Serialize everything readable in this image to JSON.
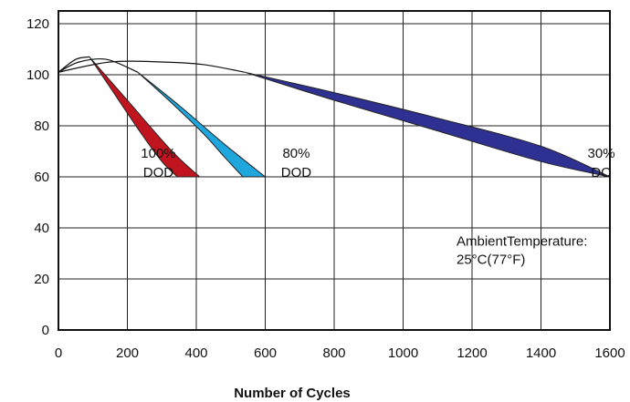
{
  "chart_data": {
    "type": "area",
    "xlabel": "Number of Cycles",
    "ylabel": "",
    "xlim": [
      0,
      1600
    ],
    "ylim": [
      0,
      125
    ],
    "grid": true,
    "x_ticks": [
      {
        "value": 0,
        "label": "0"
      },
      {
        "value": 200,
        "label": "200"
      },
      {
        "value": 400,
        "label": "400"
      },
      {
        "value": 600,
        "label": "600"
      },
      {
        "value": 800,
        "label": "800"
      },
      {
        "value": 1000,
        "label": "1000"
      },
      {
        "value": 1200,
        "label": "1200"
      },
      {
        "value": 1400,
        "label": "1400"
      },
      {
        "value": 1600,
        "label": "1600"
      }
    ],
    "y_ticks": [
      {
        "value": 0,
        "label": "0"
      },
      {
        "value": 20,
        "label": "20"
      },
      {
        "value": 40,
        "label": "40"
      },
      {
        "value": 60,
        "label": "60"
      },
      {
        "value": 80,
        "label": "80"
      },
      {
        "value": 100,
        "label": "100"
      },
      {
        "value": 120,
        "label": "120"
      }
    ],
    "series": [
      {
        "id": "dod100",
        "labels": [
          "100%",
          "DOD"
        ],
        "label_pos": {
          "x": 290,
          "y": 66
        },
        "color": "#c0151f",
        "rise": [
          [
            0,
            101
          ],
          [
            50,
            106
          ],
          [
            90,
            107
          ]
        ],
        "upper": [
          [
            90,
            107
          ],
          [
            200,
            90
          ],
          [
            330,
            70
          ],
          [
            410,
            60
          ]
        ],
        "lower": [
          [
            90,
            107
          ],
          [
            150,
            95
          ],
          [
            240,
            77
          ],
          [
            300,
            66
          ],
          [
            345,
            60
          ]
        ]
      },
      {
        "id": "dod80",
        "labels": [
          "80%",
          "DOD"
        ],
        "label_pos": {
          "x": 690,
          "y": 66
        },
        "color": "#1ea6dd",
        "rise": [
          [
            0,
            101
          ],
          [
            60,
            105
          ],
          [
            140,
            106
          ],
          [
            230,
            101
          ]
        ],
        "upper": [
          [
            230,
            101
          ],
          [
            350,
            88
          ],
          [
            480,
            73
          ],
          [
            600,
            60
          ]
        ],
        "lower": [
          [
            230,
            101
          ],
          [
            320,
            90
          ],
          [
            420,
            77
          ],
          [
            480,
            68
          ],
          [
            535,
            60
          ]
        ]
      },
      {
        "id": "dod30",
        "labels": [
          "30%",
          "DO"
        ],
        "label_pos": {
          "x": 1575,
          "y": 66
        },
        "color": "#2e3192",
        "rise": [
          [
            0,
            101
          ],
          [
            150,
            105
          ],
          [
            300,
            105
          ],
          [
            420,
            104
          ],
          [
            540,
            101
          ]
        ],
        "upper": [
          [
            540,
            101
          ],
          [
            800,
            93
          ],
          [
            1100,
            83
          ],
          [
            1400,
            72
          ],
          [
            1600,
            60
          ]
        ],
        "lower": [
          [
            540,
            101
          ],
          [
            800,
            90
          ],
          [
            1100,
            78
          ],
          [
            1400,
            66
          ],
          [
            1600,
            60
          ]
        ]
      }
    ],
    "annotations": [
      {
        "lines": [
          "AmbientTemperature:",
          "25°C(77°F)"
        ],
        "x": 1155,
        "y": 33
      }
    ]
  }
}
